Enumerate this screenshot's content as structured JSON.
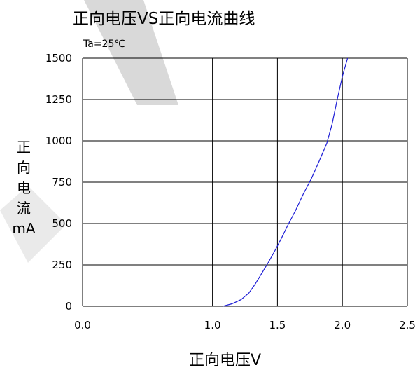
{
  "chart_data": {
    "type": "line",
    "title": "正向电压VS正向电流曲线",
    "condition": "Ta=25℃",
    "xlabel": "正向电压V",
    "ylabel_chars": [
      "正",
      "向",
      "电",
      "流"
    ],
    "ylabel_unit": "mA",
    "xlim": [
      0.0,
      2.5
    ],
    "ylim": [
      0,
      1500
    ],
    "xticks": [
      "0.0",
      "1.0",
      "1.5",
      "2.0",
      "2.5"
    ],
    "xtick_values": [
      0.0,
      1.0,
      1.5,
      2.0,
      2.5
    ],
    "yticks": [
      "0",
      "250",
      "500",
      "750",
      "1000",
      "1250",
      "1500"
    ],
    "ytick_values": [
      0,
      250,
      500,
      750,
      1000,
      1250,
      1500
    ],
    "grid": true,
    "series": [
      {
        "color": "#1c1cd6",
        "x": [
          1.08,
          1.15,
          1.22,
          1.28,
          1.33,
          1.38,
          1.43,
          1.48,
          1.53,
          1.58,
          1.64,
          1.7,
          1.76,
          1.82,
          1.88,
          1.92,
          1.96,
          2.0,
          2.04
        ],
        "y": [
          0,
          15,
          40,
          80,
          135,
          200,
          265,
          335,
          410,
          490,
          580,
          680,
          770,
          875,
          985,
          1100,
          1250,
          1390,
          1500
        ]
      }
    ]
  },
  "watermark": {
    "color": "#cccccc"
  }
}
